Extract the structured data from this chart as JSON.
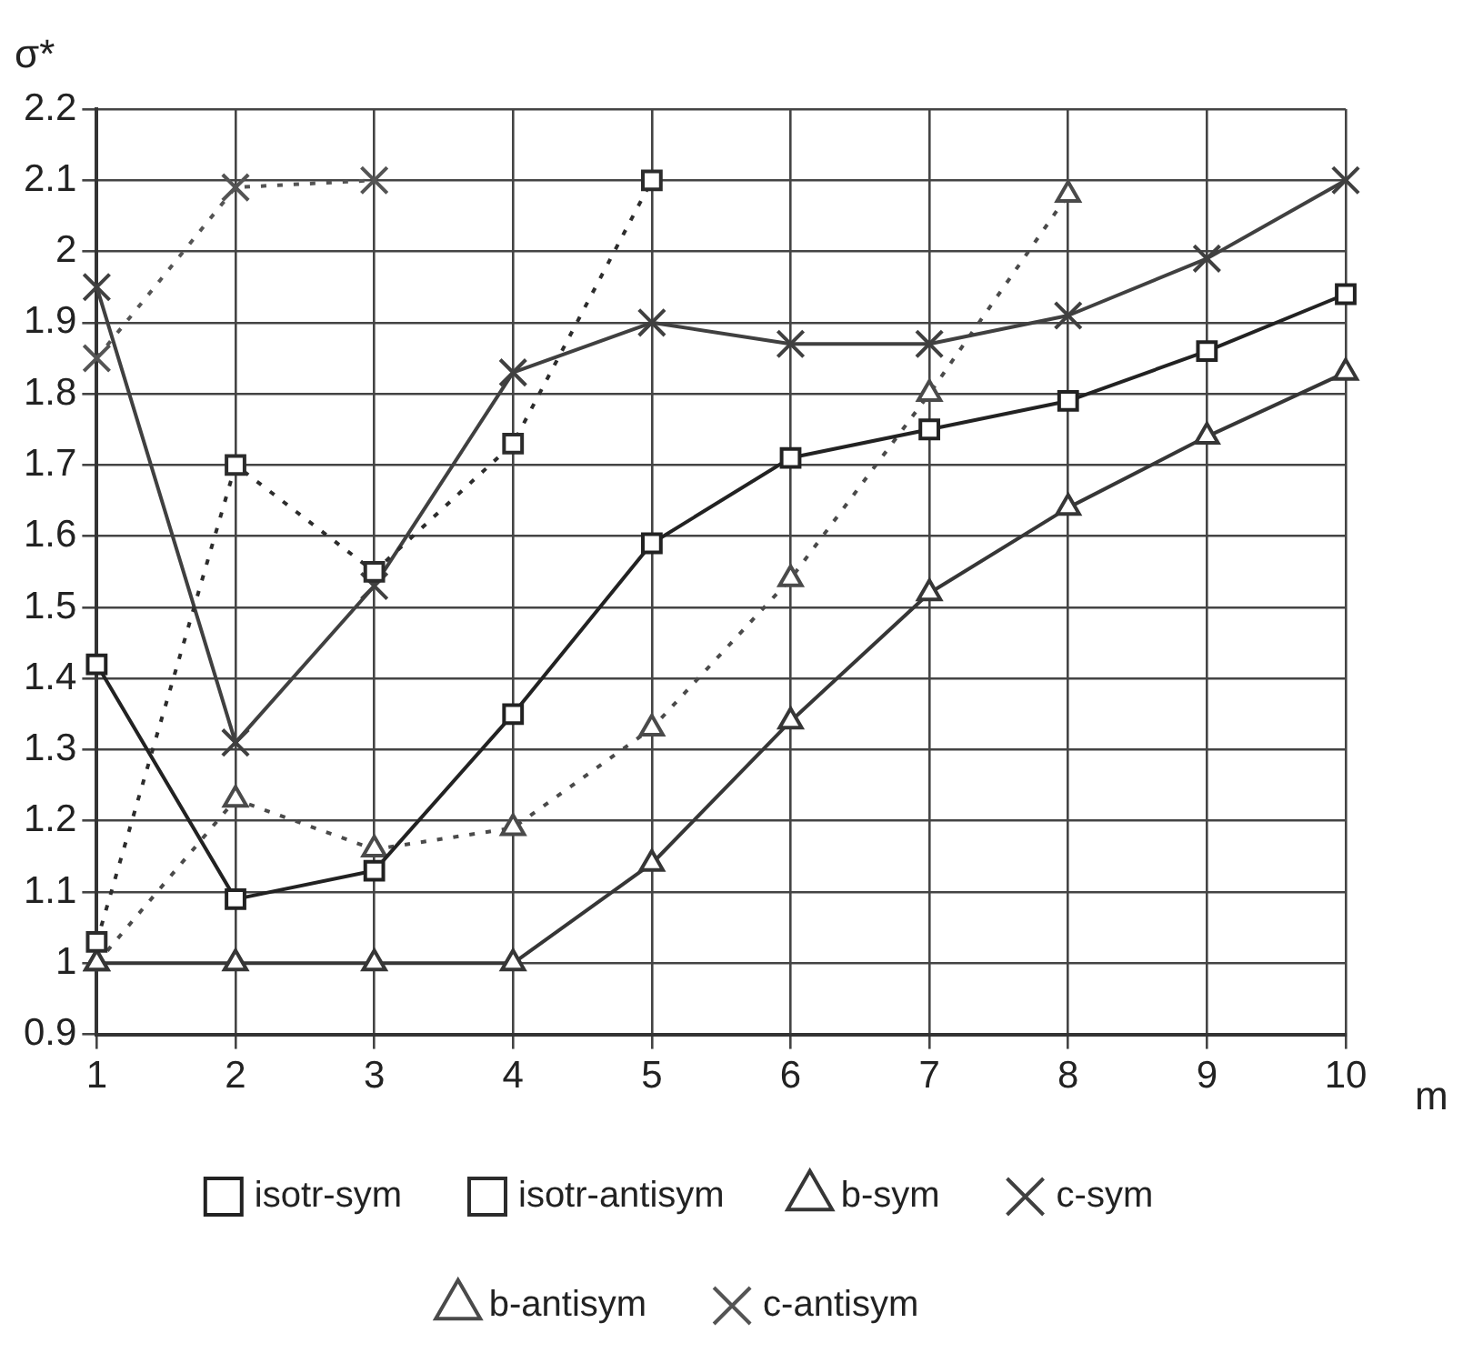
{
  "chart_data": {
    "type": "line",
    "xlabel": "m",
    "ylabel": "σ*",
    "categories": [
      "1",
      "2",
      "3",
      "4",
      "5",
      "6",
      "7",
      "8",
      "9",
      "10"
    ],
    "ylim": [
      0.9,
      2.2
    ],
    "yticks": [
      {
        "value": 0.9,
        "label": "0.9"
      },
      {
        "value": 1,
        "label": "1"
      },
      {
        "value": 1.1,
        "label": "1.1"
      },
      {
        "value": 1.2,
        "label": "1.2"
      },
      {
        "value": 1.3,
        "label": "1.3"
      },
      {
        "value": 1.4,
        "label": "1.4"
      },
      {
        "value": 1.5,
        "label": "1.5"
      },
      {
        "value": 1.6,
        "label": "1.6"
      },
      {
        "value": 1.7,
        "label": "1.7"
      },
      {
        "value": 1.8,
        "label": "1.8"
      },
      {
        "value": 1.9,
        "label": "1.9"
      },
      {
        "value": 2,
        "label": "2"
      },
      {
        "value": 2.1,
        "label": "2.1"
      },
      {
        "value": 2.2,
        "label": "2.2"
      }
    ],
    "grid": true,
    "legend": "bottom",
    "series": [
      {
        "name": "isotr-sym",
        "color": "#222222",
        "marker": "square",
        "line_style": "solid",
        "values": [
          1.42,
          1.09,
          1.13,
          1.35,
          1.59,
          1.71,
          1.75,
          1.79,
          1.86,
          1.94
        ]
      },
      {
        "name": "isotr-antisym",
        "color": "#2c2c2c",
        "marker": "square",
        "line_style": "dotted",
        "values": [
          1.03,
          1.7,
          1.55,
          1.73,
          2.1,
          null,
          null,
          null,
          null,
          null
        ]
      },
      {
        "name": "b-sym",
        "color": "#363636",
        "marker": "triangle",
        "line_style": "solid",
        "values": [
          1,
          1,
          1,
          1,
          1.14,
          1.34,
          1.52,
          1.64,
          1.74,
          1.83
        ]
      },
      {
        "name": "c-sym",
        "color": "#404040",
        "marker": "cross",
        "line_style": "solid",
        "values": [
          1.95,
          1.31,
          1.53,
          1.83,
          1.9,
          1.87,
          1.87,
          1.91,
          1.99,
          2.1
        ]
      },
      {
        "name": "b-antisym",
        "color": "#4a4a4a",
        "marker": "triangle",
        "line_style": "dotted",
        "values": [
          1,
          1.23,
          1.16,
          1.19,
          1.33,
          1.54,
          1.8,
          2.08,
          null,
          null
        ]
      },
      {
        "name": "c-antisym",
        "color": "#545454",
        "marker": "cross",
        "line_style": "dotted",
        "values": [
          1.85,
          2.09,
          2.1,
          null,
          null,
          null,
          null,
          null,
          null,
          null
        ]
      }
    ]
  }
}
